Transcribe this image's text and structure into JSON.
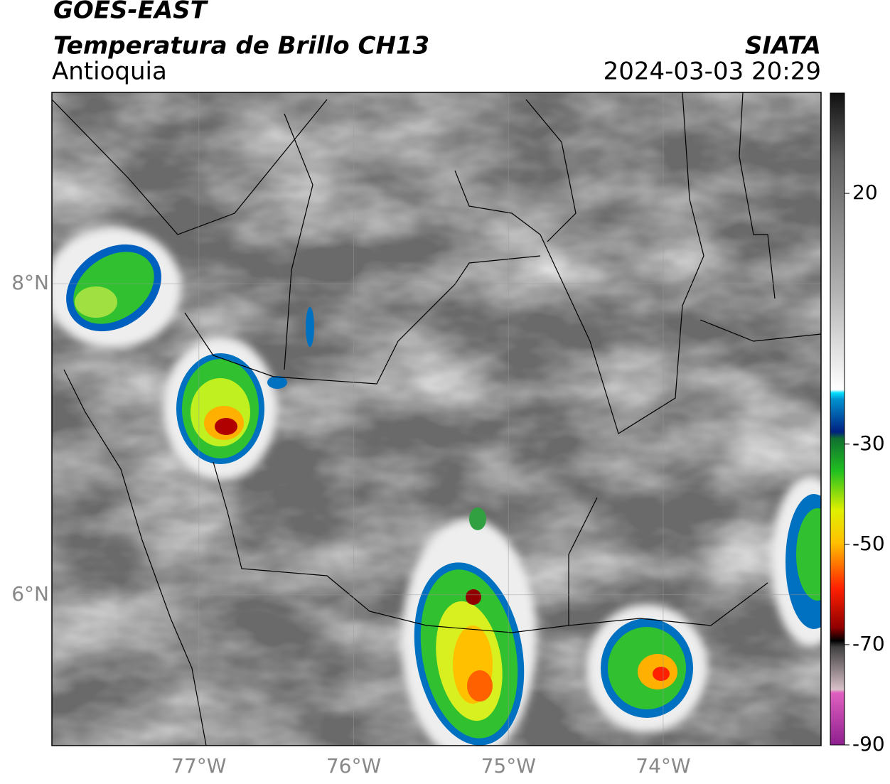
{
  "header": {
    "satellite": "GOES-EAST",
    "product": "Temperatura de Brillo CH13",
    "region": "Antioquia",
    "source": "SIATA",
    "datetime": "2024-03-03 20:29"
  },
  "map": {
    "xlim": [
      -77.95,
      -72.98
    ],
    "ylim": [
      5.03,
      9.23
    ],
    "xticks": [
      {
        "value": -77,
        "label": "77°W"
      },
      {
        "value": -76,
        "label": "76°W"
      },
      {
        "value": -75,
        "label": "75°W"
      },
      {
        "value": -74,
        "label": "74°W"
      }
    ],
    "yticks": [
      {
        "value": 8,
        "label": "8°N"
      },
      {
        "value": 6,
        "label": "6°N"
      }
    ],
    "grid": true
  },
  "colorbar": {
    "lim": [
      -90,
      40
    ],
    "ticks": [
      20,
      -30,
      -50,
      -70,
      -90
    ]
  }
}
